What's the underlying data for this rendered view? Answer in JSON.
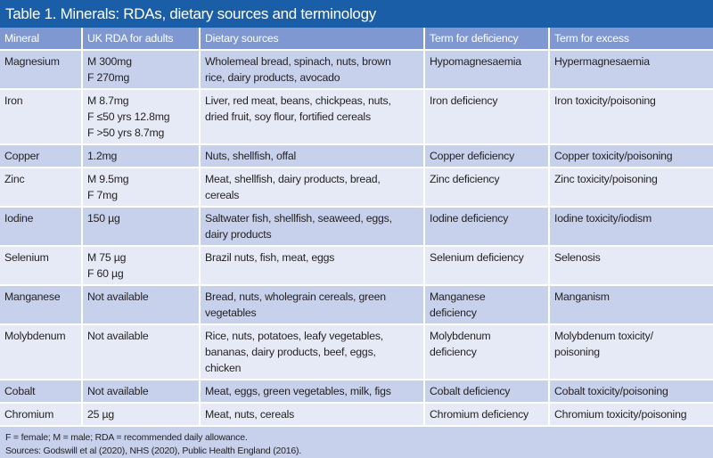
{
  "title": "Table 1. Minerals: RDAs, dietary sources and terminology",
  "headers": [
    "Mineral",
    "UK RDA for adults",
    "Dietary sources",
    "Term for deficiency",
    "Term for excess"
  ],
  "rows": [
    {
      "mineral": "Magnesium",
      "rda": [
        "M 300mg",
        "F 270mg"
      ],
      "sources": [
        "Wholemeal bread, spinach, nuts, brown",
        "rice, dairy products, avocado"
      ],
      "deficiency": [
        "Hypomagnesaemia"
      ],
      "excess": [
        "Hypermagnesaemia"
      ],
      "h": 43
    },
    {
      "mineral": "Iron",
      "rda": [
        "M 8.7mg",
        "F ≤50 yrs 12.8mg",
        "F >50 yrs 8.7mg"
      ],
      "sources": [
        "Liver, red meat, beans, chickpeas, nuts,",
        "dried fruit, soy flour, fortified cereals"
      ],
      "deficiency": [
        "Iron deficiency"
      ],
      "excess": [
        "Iron toxicity/poisoning"
      ],
      "h": 59
    },
    {
      "mineral": "Copper",
      "rda": [
        "1.2mg"
      ],
      "sources": [
        "Nuts, shellfish, offal"
      ],
      "deficiency": [
        "Copper deficiency"
      ],
      "excess": [
        "Copper toxicity/poisoning"
      ],
      "h": 23
    },
    {
      "mineral": "Zinc",
      "rda": [
        "M 9.5mg",
        "F 7mg"
      ],
      "sources": [
        "Meat, shellfish, dairy products, bread,",
        "cereals"
      ],
      "deficiency": [
        "Zinc deficiency"
      ],
      "excess": [
        "Zinc toxicity/poisoning"
      ],
      "h": 40
    },
    {
      "mineral": "Iodine",
      "rda": [
        "150 µg"
      ],
      "sources": [
        "Saltwater fish, shellfish, seaweed, eggs,",
        "dairy products"
      ],
      "deficiency": [
        "Iodine deficiency"
      ],
      "excess": [
        "Iodine toxicity/iodism"
      ],
      "h": 40
    },
    {
      "mineral": "Selenium",
      "rda": [
        "M 75 µg",
        "F 60 µg"
      ],
      "sources": [
        "Brazil nuts, fish, meat, eggs"
      ],
      "deficiency": [
        "Selenium deficiency"
      ],
      "excess": [
        "Selenosis"
      ],
      "h": 40
    },
    {
      "mineral": "Manganese",
      "rda": [
        "Not available"
      ],
      "sources": [
        "Bread, nuts, wholegrain cereals, green",
        "vegetables"
      ],
      "deficiency": [
        "Manganese",
        "deficiency"
      ],
      "excess": [
        "Manganism"
      ],
      "h": 42
    },
    {
      "mineral": "Molybdenum",
      "rda": [
        "Not available"
      ],
      "sources": [
        "Rice, nuts, potatoes, leafy vegetables,",
        "bananas, dairy products, beef, eggs,",
        "chicken"
      ],
      "deficiency": [
        "Molybdenum",
        "deficiency"
      ],
      "excess": [
        "Molybdenum toxicity/",
        "poisoning"
      ],
      "h": 58
    },
    {
      "mineral": "Cobalt",
      "rda": [
        "Not available"
      ],
      "sources": [
        "Meat, eggs, green vegetables, milk, figs"
      ],
      "deficiency": [
        "Cobalt deficiency"
      ],
      "excess": [
        "Cobalt toxicity/poisoning"
      ],
      "h": 22
    },
    {
      "mineral": "Chromium",
      "rda": [
        "25 µg"
      ],
      "sources": [
        "Meat, nuts, cereals"
      ],
      "deficiency": [
        "Chromium deficiency"
      ],
      "excess": [
        "Chromium toxicity/poisoning"
      ],
      "h": 23
    }
  ],
  "footnote": "F = female; M = male; RDA = recommended daily allowance.",
  "sources": "Sources: Godswill et al (2020), NHS (2020), Public Health England (2016).",
  "colors": {
    "title_bar": "#1b5ea8",
    "header_row": "#7f98d2",
    "row_dark": "#c7d1ec",
    "row_light": "#e6eaf6"
  }
}
